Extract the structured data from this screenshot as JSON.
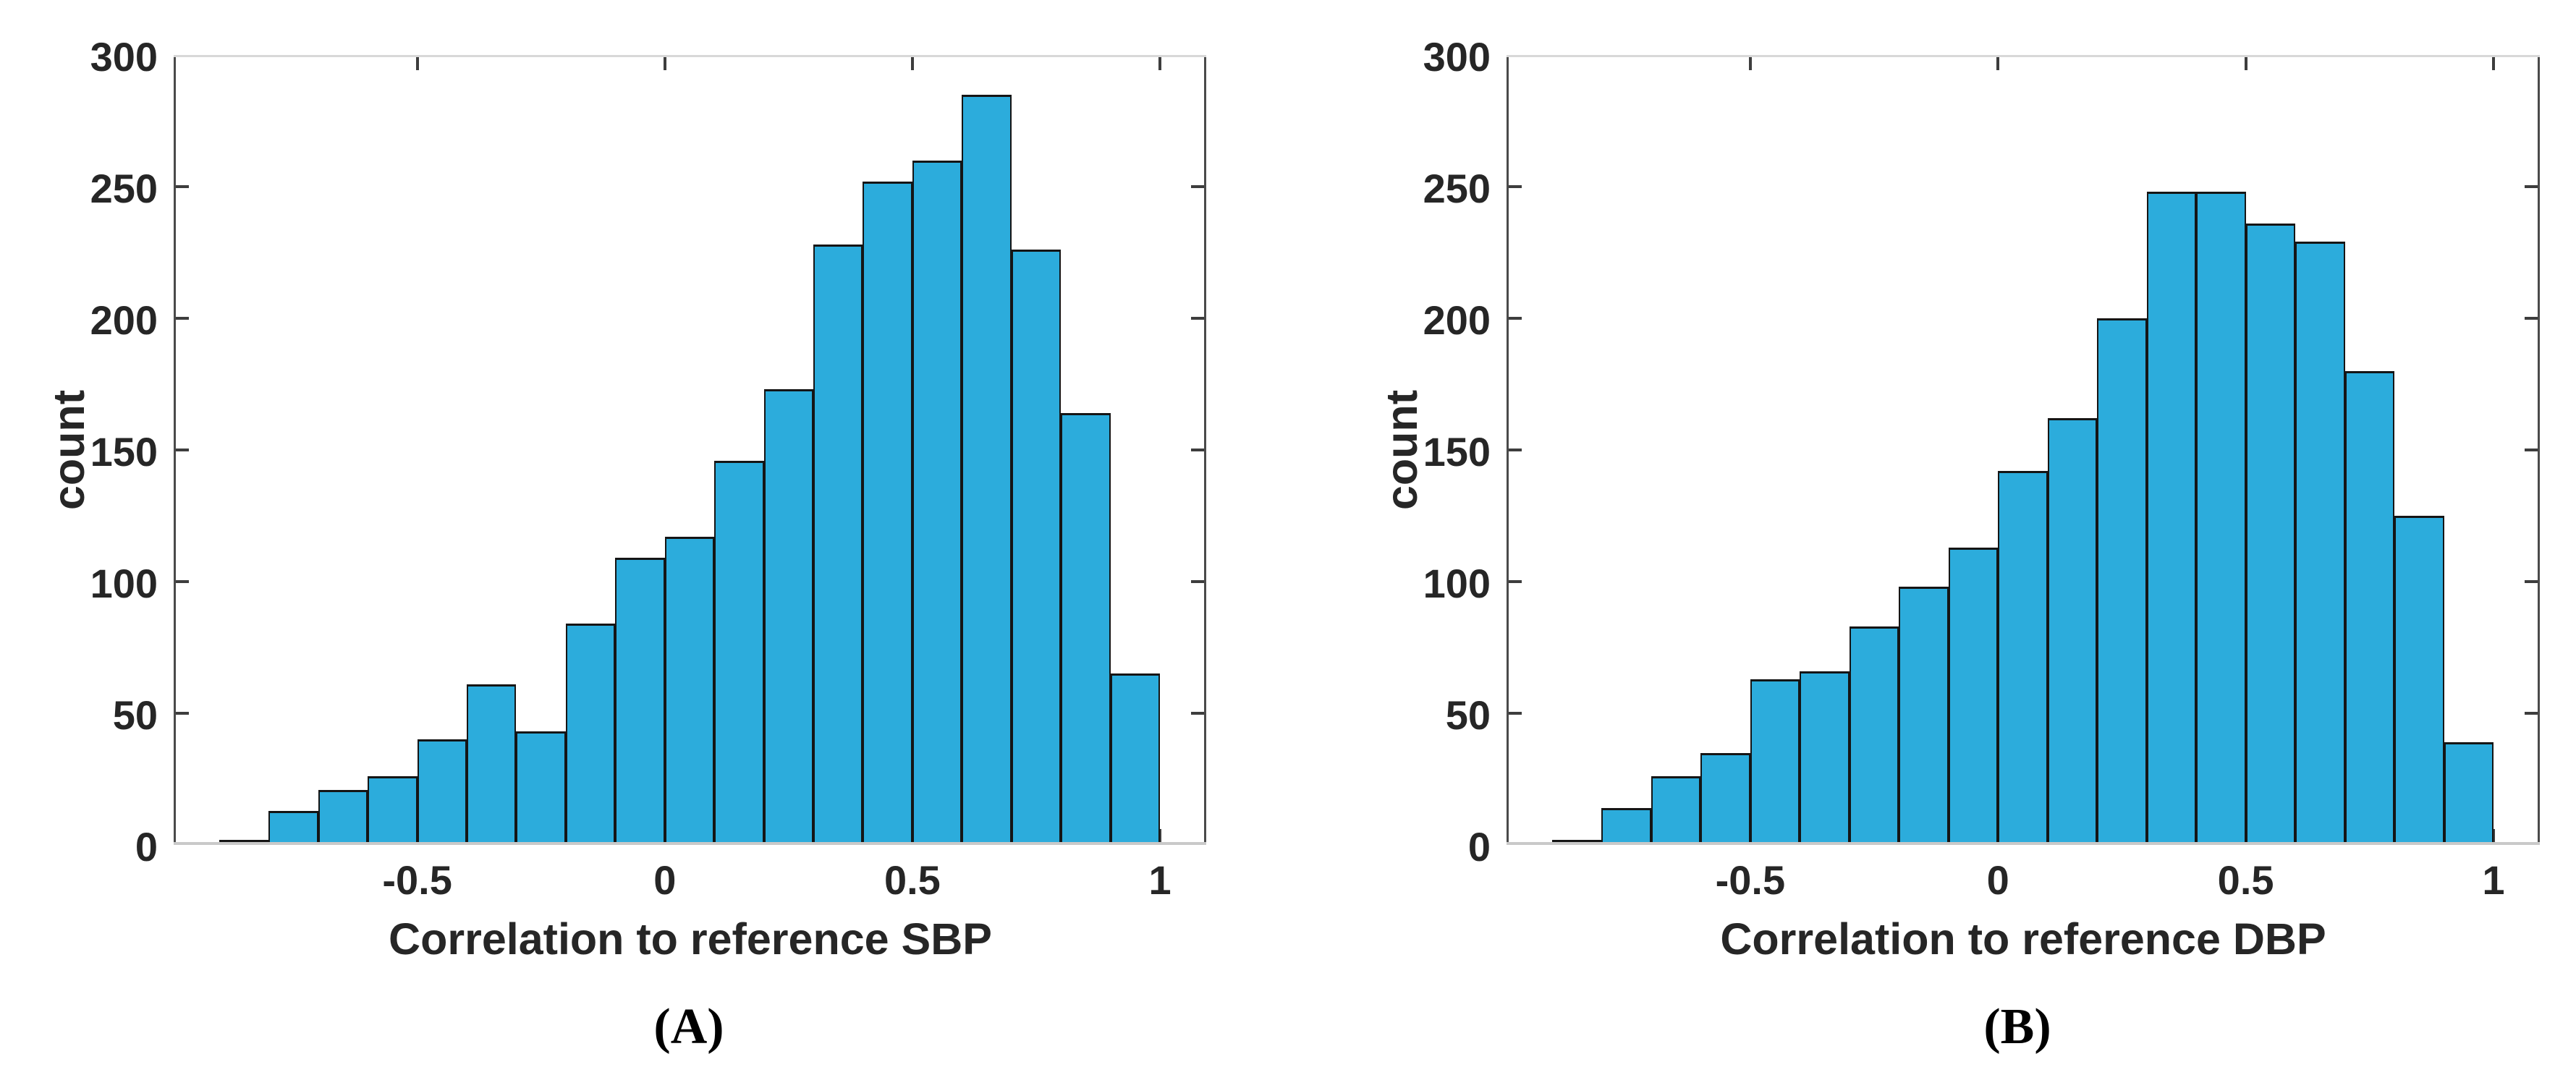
{
  "figure": {
    "background": "#ffffff",
    "bar_fill_color": "#2CACDC",
    "bar_edge_color": "#151515",
    "axis_vertical_color": "#4a4a4a",
    "axis_horizontal_color": "#c9c9c9",
    "tick_color": "#3d3d3d",
    "label_color": "#262626"
  },
  "chart_data": [
    {
      "type": "bar",
      "subtype": "histogram",
      "panel_caption": "(A)",
      "title": "",
      "xlabel": "Correlation to reference SBP",
      "ylabel": "count",
      "bin_edges": [
        -0.9,
        -0.8,
        -0.7,
        -0.6,
        -0.5,
        -0.4,
        -0.3,
        -0.2,
        -0.1,
        0,
        0.1,
        0.2,
        0.3,
        0.4,
        0.5,
        0.6,
        0.7,
        0.8,
        0.9,
        1.0
      ],
      "counts": [
        2,
        13,
        21,
        26,
        40,
        61,
        43,
        84,
        109,
        117,
        146,
        173,
        228,
        252,
        260,
        285,
        226,
        164,
        65
      ],
      "xlim": [
        -0.992,
        1.0935
      ],
      "ylim": [
        0,
        300
      ],
      "xticks": [
        -0.5,
        0,
        0.5,
        1
      ],
      "xtick_labels": [
        "-0.5",
        "0",
        "0.5",
        "1"
      ],
      "yticks": [
        0,
        50,
        100,
        150,
        200,
        250,
        300
      ],
      "ytick_labels": [
        "0",
        "50",
        "100",
        "150",
        "200",
        "250",
        "300"
      ],
      "grid": false,
      "legend": null
    },
    {
      "type": "bar",
      "subtype": "histogram",
      "panel_caption": "(B)",
      "title": "",
      "xlabel": "Correlation to reference DBP",
      "ylabel": "count",
      "bin_edges": [
        -0.9,
        -0.8,
        -0.7,
        -0.6,
        -0.5,
        -0.4,
        -0.3,
        -0.2,
        -0.1,
        0,
        0.1,
        0.2,
        0.3,
        0.4,
        0.5,
        0.6,
        0.7,
        0.8,
        0.9,
        1.0
      ],
      "counts": [
        2,
        14,
        26,
        35,
        63,
        66,
        83,
        98,
        113,
        142,
        162,
        200,
        248,
        248,
        236,
        229,
        180,
        125,
        39
      ],
      "xlim": [
        -0.992,
        1.0935
      ],
      "ylim": [
        0,
        300
      ],
      "xticks": [
        -0.5,
        0,
        0.5,
        1
      ],
      "xtick_labels": [
        "-0.5",
        "0",
        "0.5",
        "1"
      ],
      "yticks": [
        0,
        50,
        100,
        150,
        200,
        250,
        300
      ],
      "ytick_labels": [
        "0",
        "50",
        "100",
        "150",
        "200",
        "250",
        "300"
      ],
      "grid": false,
      "legend": null
    }
  ]
}
